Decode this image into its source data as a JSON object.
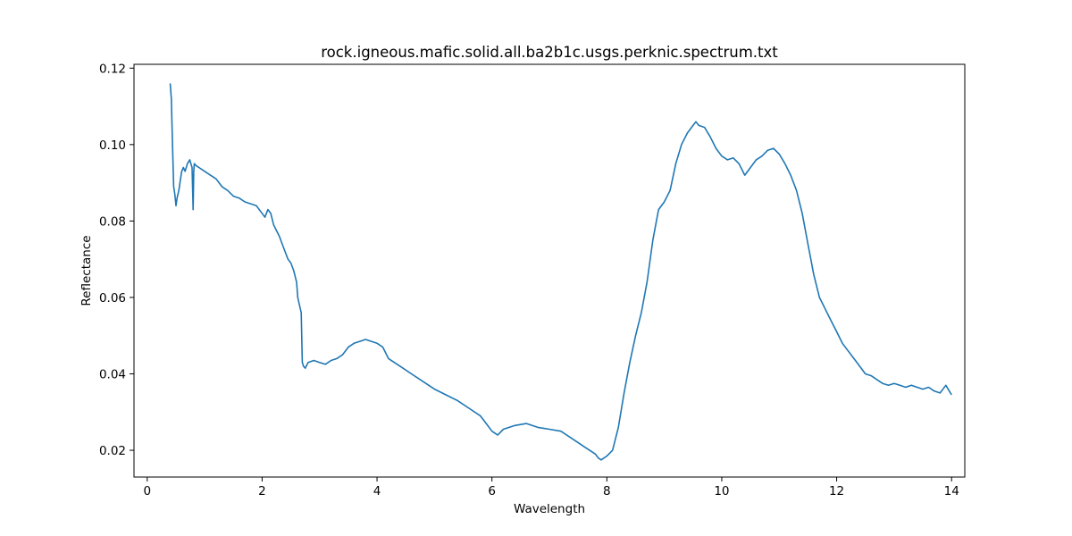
{
  "chart_data": {
    "type": "line",
    "title": "rock.igneous.mafic.solid.all.ba2b1c.usgs.perknic.spectrum.txt",
    "xlabel": "Wavelength",
    "ylabel": "Reflectance",
    "xlim": [
      -0.23,
      14.23
    ],
    "ylim": [
      0.013,
      0.121
    ],
    "x_ticks": [
      0,
      2,
      4,
      6,
      8,
      10,
      12,
      14
    ],
    "y_ticks": [
      0.02,
      0.04,
      0.06,
      0.08,
      0.1,
      0.12
    ],
    "y_tick_labels": [
      "0.02",
      "0.04",
      "0.06",
      "0.08",
      "0.10",
      "0.12"
    ],
    "grid": false,
    "line_color": "#1f77b4",
    "series": [
      {
        "x": [
          0.4,
          0.42,
          0.44,
          0.46,
          0.48,
          0.5,
          0.52,
          0.55,
          0.58,
          0.6,
          0.63,
          0.66,
          0.7,
          0.74,
          0.78,
          0.8,
          0.81,
          0.82,
          0.85,
          0.9,
          1.0,
          1.1,
          1.2,
          1.3,
          1.4,
          1.5,
          1.6,
          1.7,
          1.8,
          1.9,
          1.95,
          2.0,
          2.05,
          2.1,
          2.15,
          2.2,
          2.25,
          2.3,
          2.35,
          2.4,
          2.45,
          2.5,
          2.55,
          2.6,
          2.62,
          2.65,
          2.68,
          2.7,
          2.72,
          2.75,
          2.8,
          2.9,
          3.0,
          3.1,
          3.2,
          3.3,
          3.4,
          3.5,
          3.6,
          3.7,
          3.8,
          3.9,
          4.0,
          4.1,
          4.2,
          4.4,
          4.6,
          4.8,
          5.0,
          5.2,
          5.4,
          5.6,
          5.8,
          5.9,
          6.0,
          6.1,
          6.2,
          6.4,
          6.6,
          6.8,
          7.0,
          7.2,
          7.4,
          7.6,
          7.7,
          7.8,
          7.85,
          7.9,
          8.0,
          8.1,
          8.2,
          8.3,
          8.4,
          8.5,
          8.6,
          8.7,
          8.8,
          8.9,
          9.0,
          9.1,
          9.2,
          9.3,
          9.4,
          9.5,
          9.55,
          9.6,
          9.7,
          9.8,
          9.9,
          10.0,
          10.1,
          10.2,
          10.3,
          10.4,
          10.5,
          10.6,
          10.7,
          10.8,
          10.9,
          11.0,
          11.1,
          11.2,
          11.3,
          11.4,
          11.5,
          11.6,
          11.7,
          11.8,
          11.9,
          12.0,
          12.1,
          12.2,
          12.3,
          12.4,
          12.5,
          12.6,
          12.7,
          12.8,
          12.9,
          13.0,
          13.1,
          13.2,
          13.3,
          13.4,
          13.5,
          13.6,
          13.7,
          13.8,
          13.9,
          14.0
        ],
        "y": [
          0.116,
          0.112,
          0.1,
          0.089,
          0.087,
          0.084,
          0.086,
          0.088,
          0.091,
          0.093,
          0.094,
          0.093,
          0.095,
          0.096,
          0.094,
          0.083,
          0.093,
          0.095,
          0.0945,
          0.094,
          0.093,
          0.092,
          0.091,
          0.089,
          0.088,
          0.0865,
          0.086,
          0.085,
          0.0845,
          0.084,
          0.083,
          0.082,
          0.081,
          0.083,
          0.082,
          0.079,
          0.0775,
          0.076,
          0.074,
          0.072,
          0.07,
          0.069,
          0.067,
          0.064,
          0.06,
          0.058,
          0.056,
          0.043,
          0.042,
          0.0415,
          0.043,
          0.0435,
          0.043,
          0.0425,
          0.0435,
          0.044,
          0.045,
          0.047,
          0.048,
          0.0485,
          0.049,
          0.0485,
          0.048,
          0.047,
          0.044,
          0.042,
          0.04,
          0.038,
          0.036,
          0.0345,
          0.033,
          0.031,
          0.029,
          0.027,
          0.025,
          0.024,
          0.0255,
          0.0265,
          0.027,
          0.026,
          0.0255,
          0.025,
          0.023,
          0.021,
          0.02,
          0.019,
          0.018,
          0.0175,
          0.0185,
          0.02,
          0.026,
          0.035,
          0.043,
          0.05,
          0.056,
          0.064,
          0.075,
          0.083,
          0.085,
          0.088,
          0.095,
          0.1,
          0.103,
          0.105,
          0.106,
          0.105,
          0.1045,
          0.102,
          0.099,
          0.097,
          0.096,
          0.0965,
          0.095,
          0.092,
          0.094,
          0.096,
          0.097,
          0.0985,
          0.099,
          0.0975,
          0.095,
          0.092,
          0.088,
          0.082,
          0.074,
          0.066,
          0.06,
          0.057,
          0.054,
          0.051,
          0.048,
          0.046,
          0.044,
          0.042,
          0.04,
          0.0395,
          0.0385,
          0.0375,
          0.037,
          0.0375,
          0.037,
          0.0365,
          0.037,
          0.0365,
          0.036,
          0.0365,
          0.0355,
          0.035,
          0.037,
          0.0345
        ]
      }
    ]
  }
}
